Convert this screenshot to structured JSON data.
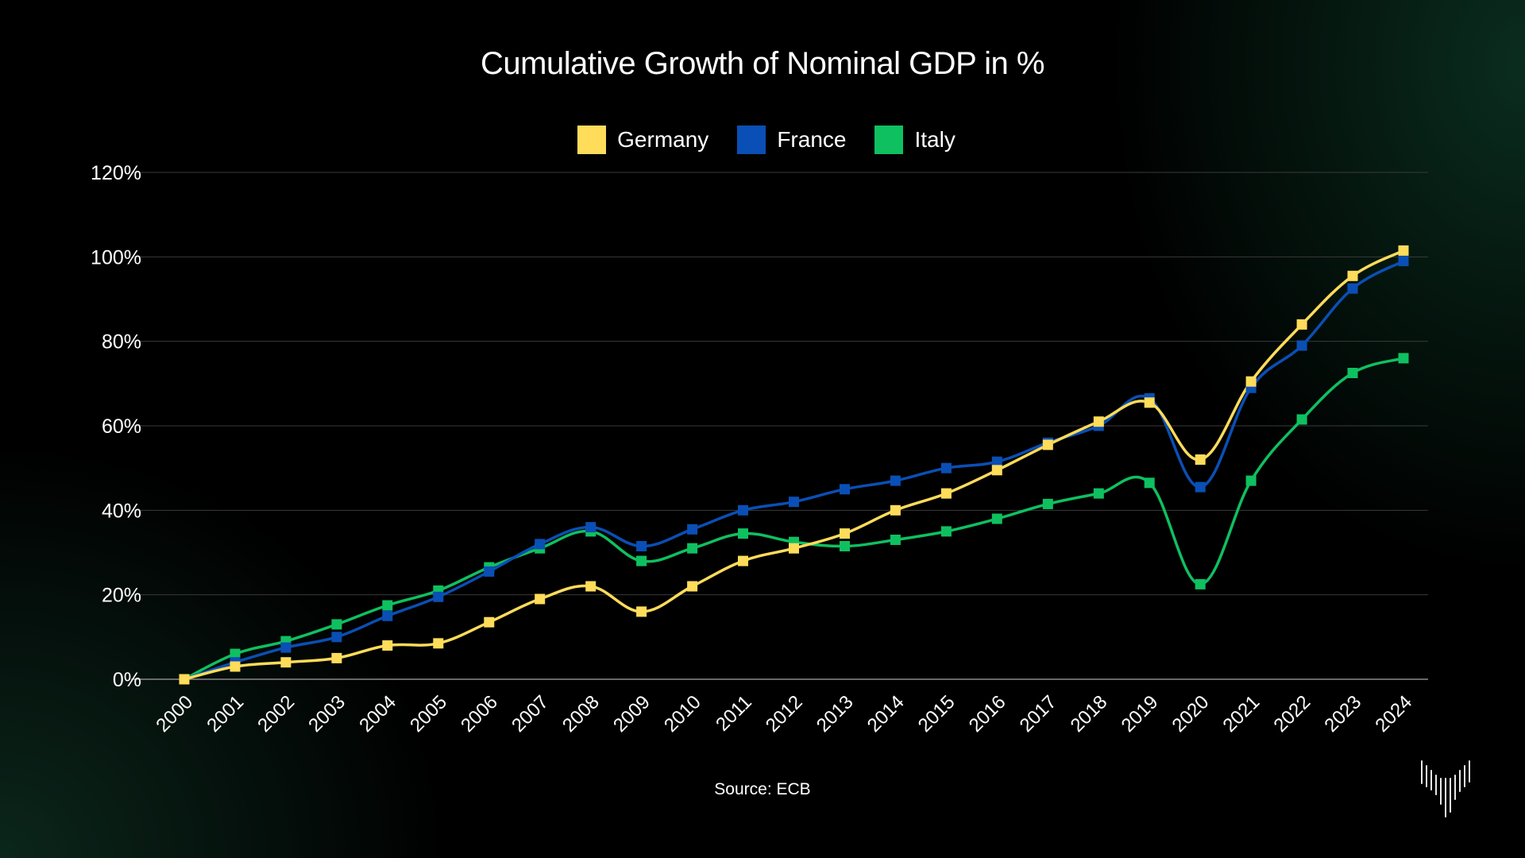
{
  "chart_data": {
    "type": "line",
    "title": "Cumulative Growth of Nominal GDP in %",
    "source": "Source: ECB",
    "xlabel": "",
    "ylabel": "",
    "x": [
      "2000",
      "2001",
      "2002",
      "2003",
      "2004",
      "2005",
      "2006",
      "2007",
      "2008",
      "2009",
      "2010",
      "2011",
      "2012",
      "2013",
      "2014",
      "2015",
      "2016",
      "2017",
      "2018",
      "2019",
      "2020",
      "2021",
      "2022",
      "2023",
      "2024"
    ],
    "y_ticks": [
      "0%",
      "20%",
      "40%",
      "60%",
      "80%",
      "100%",
      "120%"
    ],
    "ylim": [
      0,
      120
    ],
    "grid": true,
    "legend_position": "top-center",
    "series": [
      {
        "name": "Germany",
        "color": "#FFDC5A",
        "values": [
          0,
          3,
          4,
          5,
          8,
          8.5,
          13.5,
          19,
          22,
          16,
          22,
          28,
          31,
          34.5,
          40,
          44,
          49.5,
          55.5,
          61,
          65.5,
          52,
          70.5,
          84,
          95.5,
          101.5
        ]
      },
      {
        "name": "France",
        "color": "#0A4FB5",
        "values": [
          0,
          4,
          7.5,
          10,
          15,
          19.5,
          25.5,
          32,
          36,
          31.5,
          35.5,
          40,
          42,
          45,
          47,
          50,
          51.5,
          56,
          60,
          66.5,
          45.5,
          69,
          79,
          92.5,
          99
        ]
      },
      {
        "name": "Italy",
        "color": "#0FC060",
        "values": [
          0,
          6,
          9,
          13,
          17.5,
          21,
          26.5,
          31,
          35,
          28,
          31,
          34.5,
          32.5,
          31.5,
          33,
          35,
          38,
          41.5,
          44,
          46.5,
          22.5,
          47,
          61.5,
          72.5,
          76
        ]
      }
    ]
  }
}
